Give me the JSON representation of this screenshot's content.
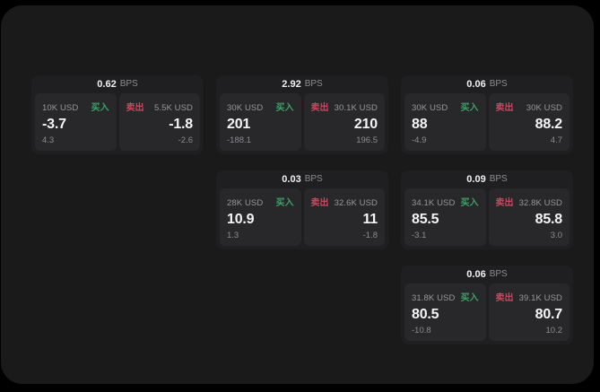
{
  "colors": {
    "page_bg": "#000000",
    "page_panel_bg": "#1a1a1b",
    "card_bg": "#1f1f21",
    "pane_bg": "#28282a",
    "buy_green": "#3fa168",
    "sell_red": "#c64a5f",
    "text_white": "#f5f5f6",
    "text_gray": "#97979b"
  },
  "labels": {
    "buy": "买入",
    "sell": "卖出",
    "bps_unit": "BPS"
  },
  "cards": [
    {
      "col": 1,
      "row": 1,
      "bps": "0.62",
      "buy": {
        "amount": "10K USD",
        "value": "-3.7",
        "delta": "4.3"
      },
      "sell": {
        "amount": "5.5K USD",
        "value": "-1.8",
        "delta": "-2.6"
      }
    },
    {
      "col": 2,
      "row": 1,
      "bps": "2.92",
      "buy": {
        "amount": "30K USD",
        "value": "201",
        "delta": "-188.1"
      },
      "sell": {
        "amount": "30.1K USD",
        "value": "210",
        "delta": "196.5"
      }
    },
    {
      "col": 3,
      "row": 1,
      "bps": "0.06",
      "buy": {
        "amount": "30K USD",
        "value": "88",
        "delta": "-4.9"
      },
      "sell": {
        "amount": "30K USD",
        "value": "88.2",
        "delta": "4.7"
      }
    },
    {
      "col": 2,
      "row": 2,
      "bps": "0.03",
      "buy": {
        "amount": "28K USD",
        "value": "10.9",
        "delta": "1.3"
      },
      "sell": {
        "amount": "32.6K USD",
        "value": "11",
        "delta": "-1.8"
      }
    },
    {
      "col": 3,
      "row": 2,
      "bps": "0.09",
      "buy": {
        "amount": "34.1K USD",
        "value": "85.5",
        "delta": "-3.1"
      },
      "sell": {
        "amount": "32.8K USD",
        "value": "85.8",
        "delta": "3.0"
      }
    },
    {
      "col": 3,
      "row": 3,
      "bps": "0.06",
      "buy": {
        "amount": "31.8K USD",
        "value": "80.5",
        "delta": "-10.8"
      },
      "sell": {
        "amount": "39.1K USD",
        "value": "80.7",
        "delta": "10.2"
      }
    }
  ]
}
